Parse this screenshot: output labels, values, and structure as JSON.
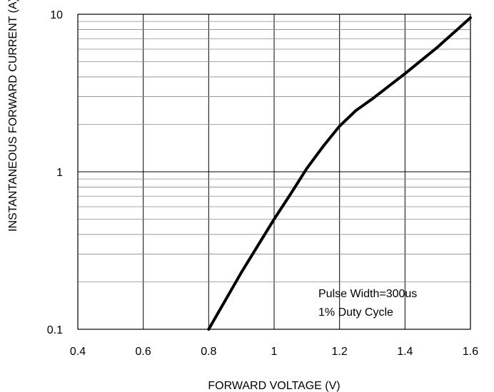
{
  "chart_data": {
    "type": "line",
    "xlabel": "FORWARD VOLTAGE (V)",
    "ylabel": "INSTANTANEOUS FORWARD CURRENT (A)",
    "x_scale": "linear",
    "y_scale": "log",
    "xlim": [
      0.4,
      1.6
    ],
    "ylim": [
      0.1,
      10
    ],
    "x_ticks": [
      0.4,
      0.6,
      0.8,
      1.0,
      1.2,
      1.4,
      1.6
    ],
    "x_tick_labels": [
      "0.4",
      "0.6",
      "0.8",
      "1",
      "1.2",
      "1.4",
      "1.6"
    ],
    "y_ticks": [
      0.1,
      1,
      10
    ],
    "y_tick_labels": [
      "0.1",
      "1",
      "10"
    ],
    "grid": true,
    "series": [
      {
        "x": [
          0.8,
          0.9,
          1.0,
          1.05,
          1.1,
          1.15,
          1.2,
          1.25,
          1.3,
          1.4,
          1.5,
          1.6
        ],
        "y": [
          0.1,
          0.23,
          0.5,
          0.72,
          1.05,
          1.45,
          1.95,
          2.45,
          2.9,
          4.2,
          6.2,
          9.5
        ]
      }
    ],
    "annotations": [
      "Pulse Width=300us",
      "1% Duty Cycle"
    ]
  }
}
